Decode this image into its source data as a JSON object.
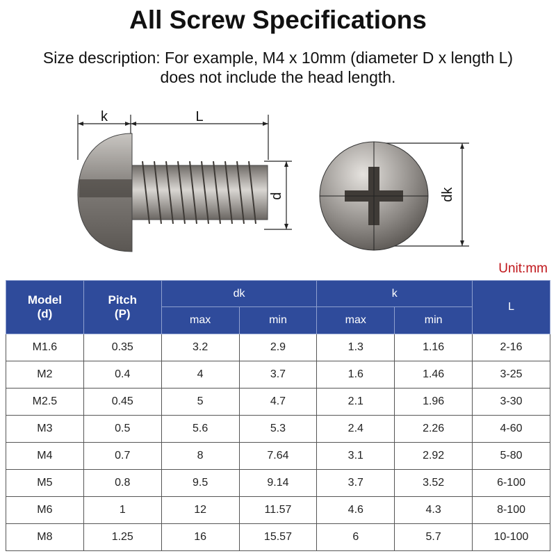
{
  "header": {
    "title": "All Screw Specifications",
    "description": [
      "Size description: For example, M4 x 10mm (diameter D x length L)",
      "does not include the head length."
    ]
  },
  "diagram": {
    "labels": {
      "k": "k",
      "L": "L",
      "d": "d",
      "dk": "dk"
    }
  },
  "unit": "Unit:mm",
  "table": {
    "header": {
      "model": [
        "Model",
        "(d)"
      ],
      "pitch": [
        "Pitch",
        "(P)"
      ],
      "dk": "dk",
      "k": "k",
      "L": "L",
      "sub": [
        "max",
        "min",
        "max",
        "min"
      ]
    },
    "rows": [
      [
        "M1.6",
        "0.35",
        "3.2",
        "2.9",
        "1.3",
        "1.16",
        "2-16"
      ],
      [
        "M2",
        "0.4",
        "4",
        "3.7",
        "1.6",
        "1.46",
        "3-25"
      ],
      [
        "M2.5",
        "0.45",
        "5",
        "4.7",
        "2.1",
        "1.96",
        "3-30"
      ],
      [
        "M3",
        "0.5",
        "5.6",
        "5.3",
        "2.4",
        "2.26",
        "4-60"
      ],
      [
        "M4",
        "0.7",
        "8",
        "7.64",
        "3.1",
        "2.92",
        "5-80"
      ],
      [
        "M5",
        "0.8",
        "9.5",
        "9.14",
        "3.7",
        "3.52",
        "6-100"
      ],
      [
        "M6",
        "1",
        "12",
        "11.57",
        "4.6",
        "4.3",
        "8-100"
      ],
      [
        "M8",
        "1.25",
        "16",
        "15.57",
        "6",
        "5.7",
        "10-100"
      ]
    ]
  }
}
